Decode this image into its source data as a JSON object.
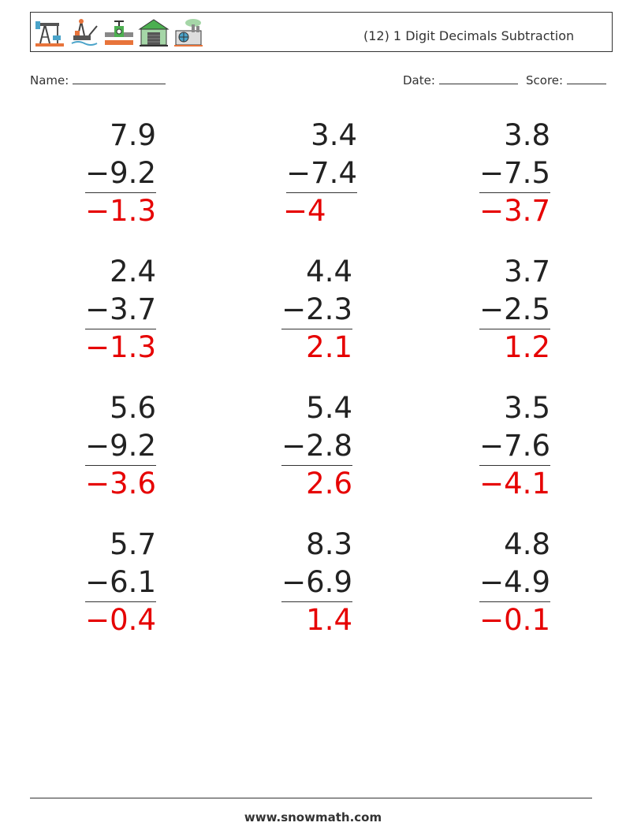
{
  "header": {
    "title": "(12) 1 Digit Decimals Subtraction",
    "icons": [
      "oil-pump-icon",
      "oil-rig-icon",
      "pipeline-valve-icon",
      "warehouse-icon",
      "factory-icon"
    ]
  },
  "meta": {
    "name_label": "Name:",
    "date_label": "Date:",
    "score_label": "Score:"
  },
  "problems": [
    {
      "top": "7.9",
      "sub": "−9.2",
      "ans": "−1.3"
    },
    {
      "top": "3.4",
      "sub": "−7.4",
      "ans": "−4"
    },
    {
      "top": "3.8",
      "sub": "−7.5",
      "ans": "−3.7"
    },
    {
      "top": "2.4",
      "sub": "−3.7",
      "ans": "−1.3"
    },
    {
      "top": "4.4",
      "sub": "−2.3",
      "ans": "2.1"
    },
    {
      "top": "3.7",
      "sub": "−2.5",
      "ans": "1.2"
    },
    {
      "top": "5.6",
      "sub": "−9.2",
      "ans": "−3.6"
    },
    {
      "top": "5.4",
      "sub": "−2.8",
      "ans": "2.6"
    },
    {
      "top": "3.5",
      "sub": "−7.6",
      "ans": "−4.1"
    },
    {
      "top": "5.7",
      "sub": "−6.1",
      "ans": "−0.4"
    },
    {
      "top": "8.3",
      "sub": "−6.9",
      "ans": "1.4"
    },
    {
      "top": "4.8",
      "sub": "−4.9",
      "ans": "−0.1"
    }
  ],
  "footer": {
    "url": "www.snowmath.com"
  }
}
